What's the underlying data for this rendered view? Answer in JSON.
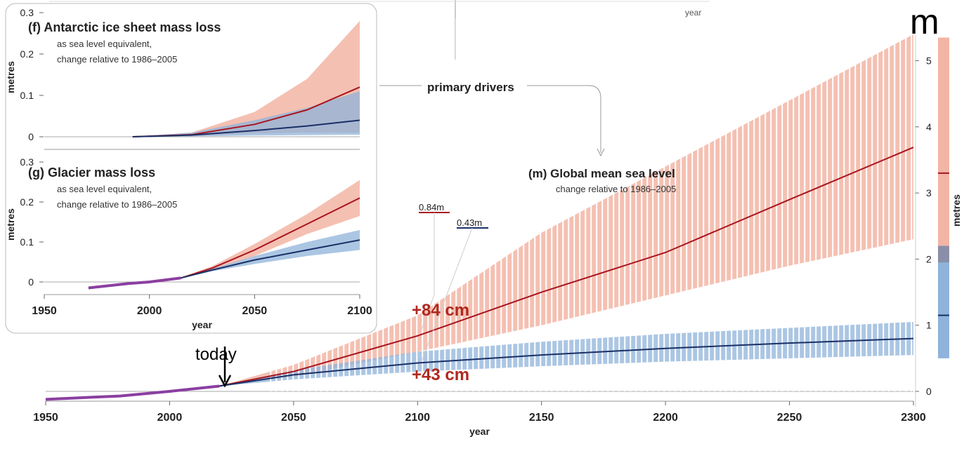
{
  "colors": {
    "high": "#f2b5a5",
    "high_line": "#a8141e",
    "low": "#8fb3da",
    "low_line": "#1a2f66",
    "overlap": "#8a8fa8",
    "observed": "#8b3fa0",
    "annot": "#b0281e"
  },
  "annotations": {
    "primary_drivers": "primary drivers",
    "today": "today",
    "plus84": "+84 cm",
    "plus43": "+43 cm",
    "val084": "0.84m",
    "val043": "0.43m",
    "corner_m": "m",
    "top_year": "year"
  },
  "chart_data": [
    {
      "id": "f",
      "type": "area",
      "title": "(f)  Antarctic ice sheet mass loss",
      "subtitle1": "as sea level equivalent,",
      "subtitle2": "change relative to 1986–2005",
      "ylabel": "metres",
      "xlim": [
        1950,
        2100
      ],
      "ylim": [
        0,
        0.3
      ],
      "yticks": [
        "0",
        "0.1",
        "0.2",
        "0.3"
      ],
      "xticks": [],
      "series": [
        {
          "kind": "high",
          "x": [
            1992,
            2020,
            2050,
            2075,
            2100
          ],
          "median": [
            0,
            0.005,
            0.03,
            0.065,
            0.12
          ],
          "lower": [
            0,
            0.002,
            0.008,
            0.01,
            0.01
          ],
          "upper": [
            0,
            0.01,
            0.06,
            0.14,
            0.28
          ]
        },
        {
          "kind": "low",
          "x": [
            1992,
            2020,
            2050,
            2075,
            2100
          ],
          "median": [
            0,
            0.004,
            0.015,
            0.026,
            0.04
          ],
          "lower": [
            0,
            0.001,
            0.003,
            0.004,
            0.005
          ],
          "upper": [
            0,
            0.01,
            0.04,
            0.07,
            0.11
          ]
        }
      ]
    },
    {
      "id": "g",
      "type": "area",
      "title": "(g)  Glacier mass loss",
      "subtitle1": "as sea level equivalent,",
      "subtitle2": "change relative to 1986–2005",
      "ylabel": "metres",
      "xlabel": "year",
      "xlim": [
        1950,
        2100
      ],
      "ylim": [
        0,
        0.3
      ],
      "yticks": [
        "0",
        "0.1",
        "0.2",
        "0.3"
      ],
      "xticks": [
        "1950",
        "2000",
        "2050",
        "2100"
      ],
      "observed": {
        "x": [
          1971,
          1990,
          2000,
          2015
        ],
        "y": [
          -0.015,
          -0.004,
          0,
          0.01
        ]
      },
      "series": [
        {
          "kind": "high",
          "x": [
            2015,
            2030,
            2050,
            2075,
            2100
          ],
          "median": [
            0.01,
            0.035,
            0.08,
            0.145,
            0.21
          ],
          "lower": [
            0.01,
            0.03,
            0.065,
            0.12,
            0.165
          ],
          "upper": [
            0.01,
            0.04,
            0.095,
            0.17,
            0.255
          ]
        },
        {
          "kind": "low",
          "x": [
            2015,
            2030,
            2050,
            2075,
            2100
          ],
          "median": [
            0.01,
            0.03,
            0.055,
            0.08,
            0.105
          ],
          "lower": [
            0.01,
            0.027,
            0.045,
            0.065,
            0.08
          ],
          "upper": [
            0.01,
            0.033,
            0.065,
            0.1,
            0.13
          ]
        }
      ]
    },
    {
      "id": "m",
      "type": "area",
      "title": "(m)  Global mean sea level",
      "subtitle1": "change relative to 1986–2005",
      "xlabel": "year",
      "ylabel": "metres",
      "xlim": [
        1950,
        2300
      ],
      "ylim": [
        0,
        5.5
      ],
      "xticks": [
        "1950",
        "2000",
        "2050",
        "2100",
        "2150",
        "2200",
        "2250",
        "2300"
      ],
      "yticks": [
        "0",
        "1",
        "2",
        "3",
        "4",
        "5"
      ],
      "observed": {
        "x": [
          1950,
          1980,
          2000,
          2020
        ],
        "y": [
          -0.12,
          -0.07,
          0,
          0.08
        ]
      },
      "series": [
        {
          "kind": "high",
          "x": [
            2020,
            2050,
            2100,
            2150,
            2200,
            2250,
            2300
          ],
          "median": [
            0.08,
            0.3,
            0.84,
            1.5,
            2.1,
            2.9,
            3.69
          ],
          "lower": [
            0.08,
            0.22,
            0.6,
            1.0,
            1.45,
            1.9,
            2.3
          ],
          "upper": [
            0.08,
            0.4,
            1.15,
            2.4,
            3.4,
            4.4,
            5.4
          ]
        },
        {
          "kind": "low",
          "x": [
            2020,
            2050,
            2100,
            2150,
            2200,
            2250,
            2300
          ],
          "median": [
            0.08,
            0.25,
            0.43,
            0.55,
            0.65,
            0.73,
            0.8
          ],
          "lower": [
            0.08,
            0.18,
            0.3,
            0.38,
            0.45,
            0.5,
            0.55
          ],
          "upper": [
            0.08,
            0.32,
            0.6,
            0.75,
            0.87,
            0.96,
            1.05
          ]
        }
      ],
      "range_2300": {
        "high": {
          "lower": 2.2,
          "upper": 5.35,
          "median": 3.3
        },
        "low": {
          "lower": 0.5,
          "upper": 2.2,
          "median": 1.15
        },
        "overlap": [
          1.95,
          2.2
        ]
      }
    }
  ]
}
